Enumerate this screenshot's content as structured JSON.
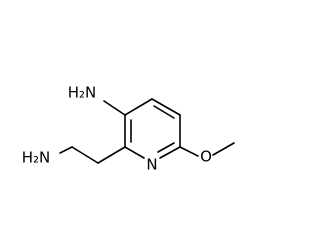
{
  "atoms": {
    "amine_ring": "H₂N",
    "amine_chain": "H₂N",
    "ring_nitrogen": "N",
    "oxygen": "O"
  }
}
